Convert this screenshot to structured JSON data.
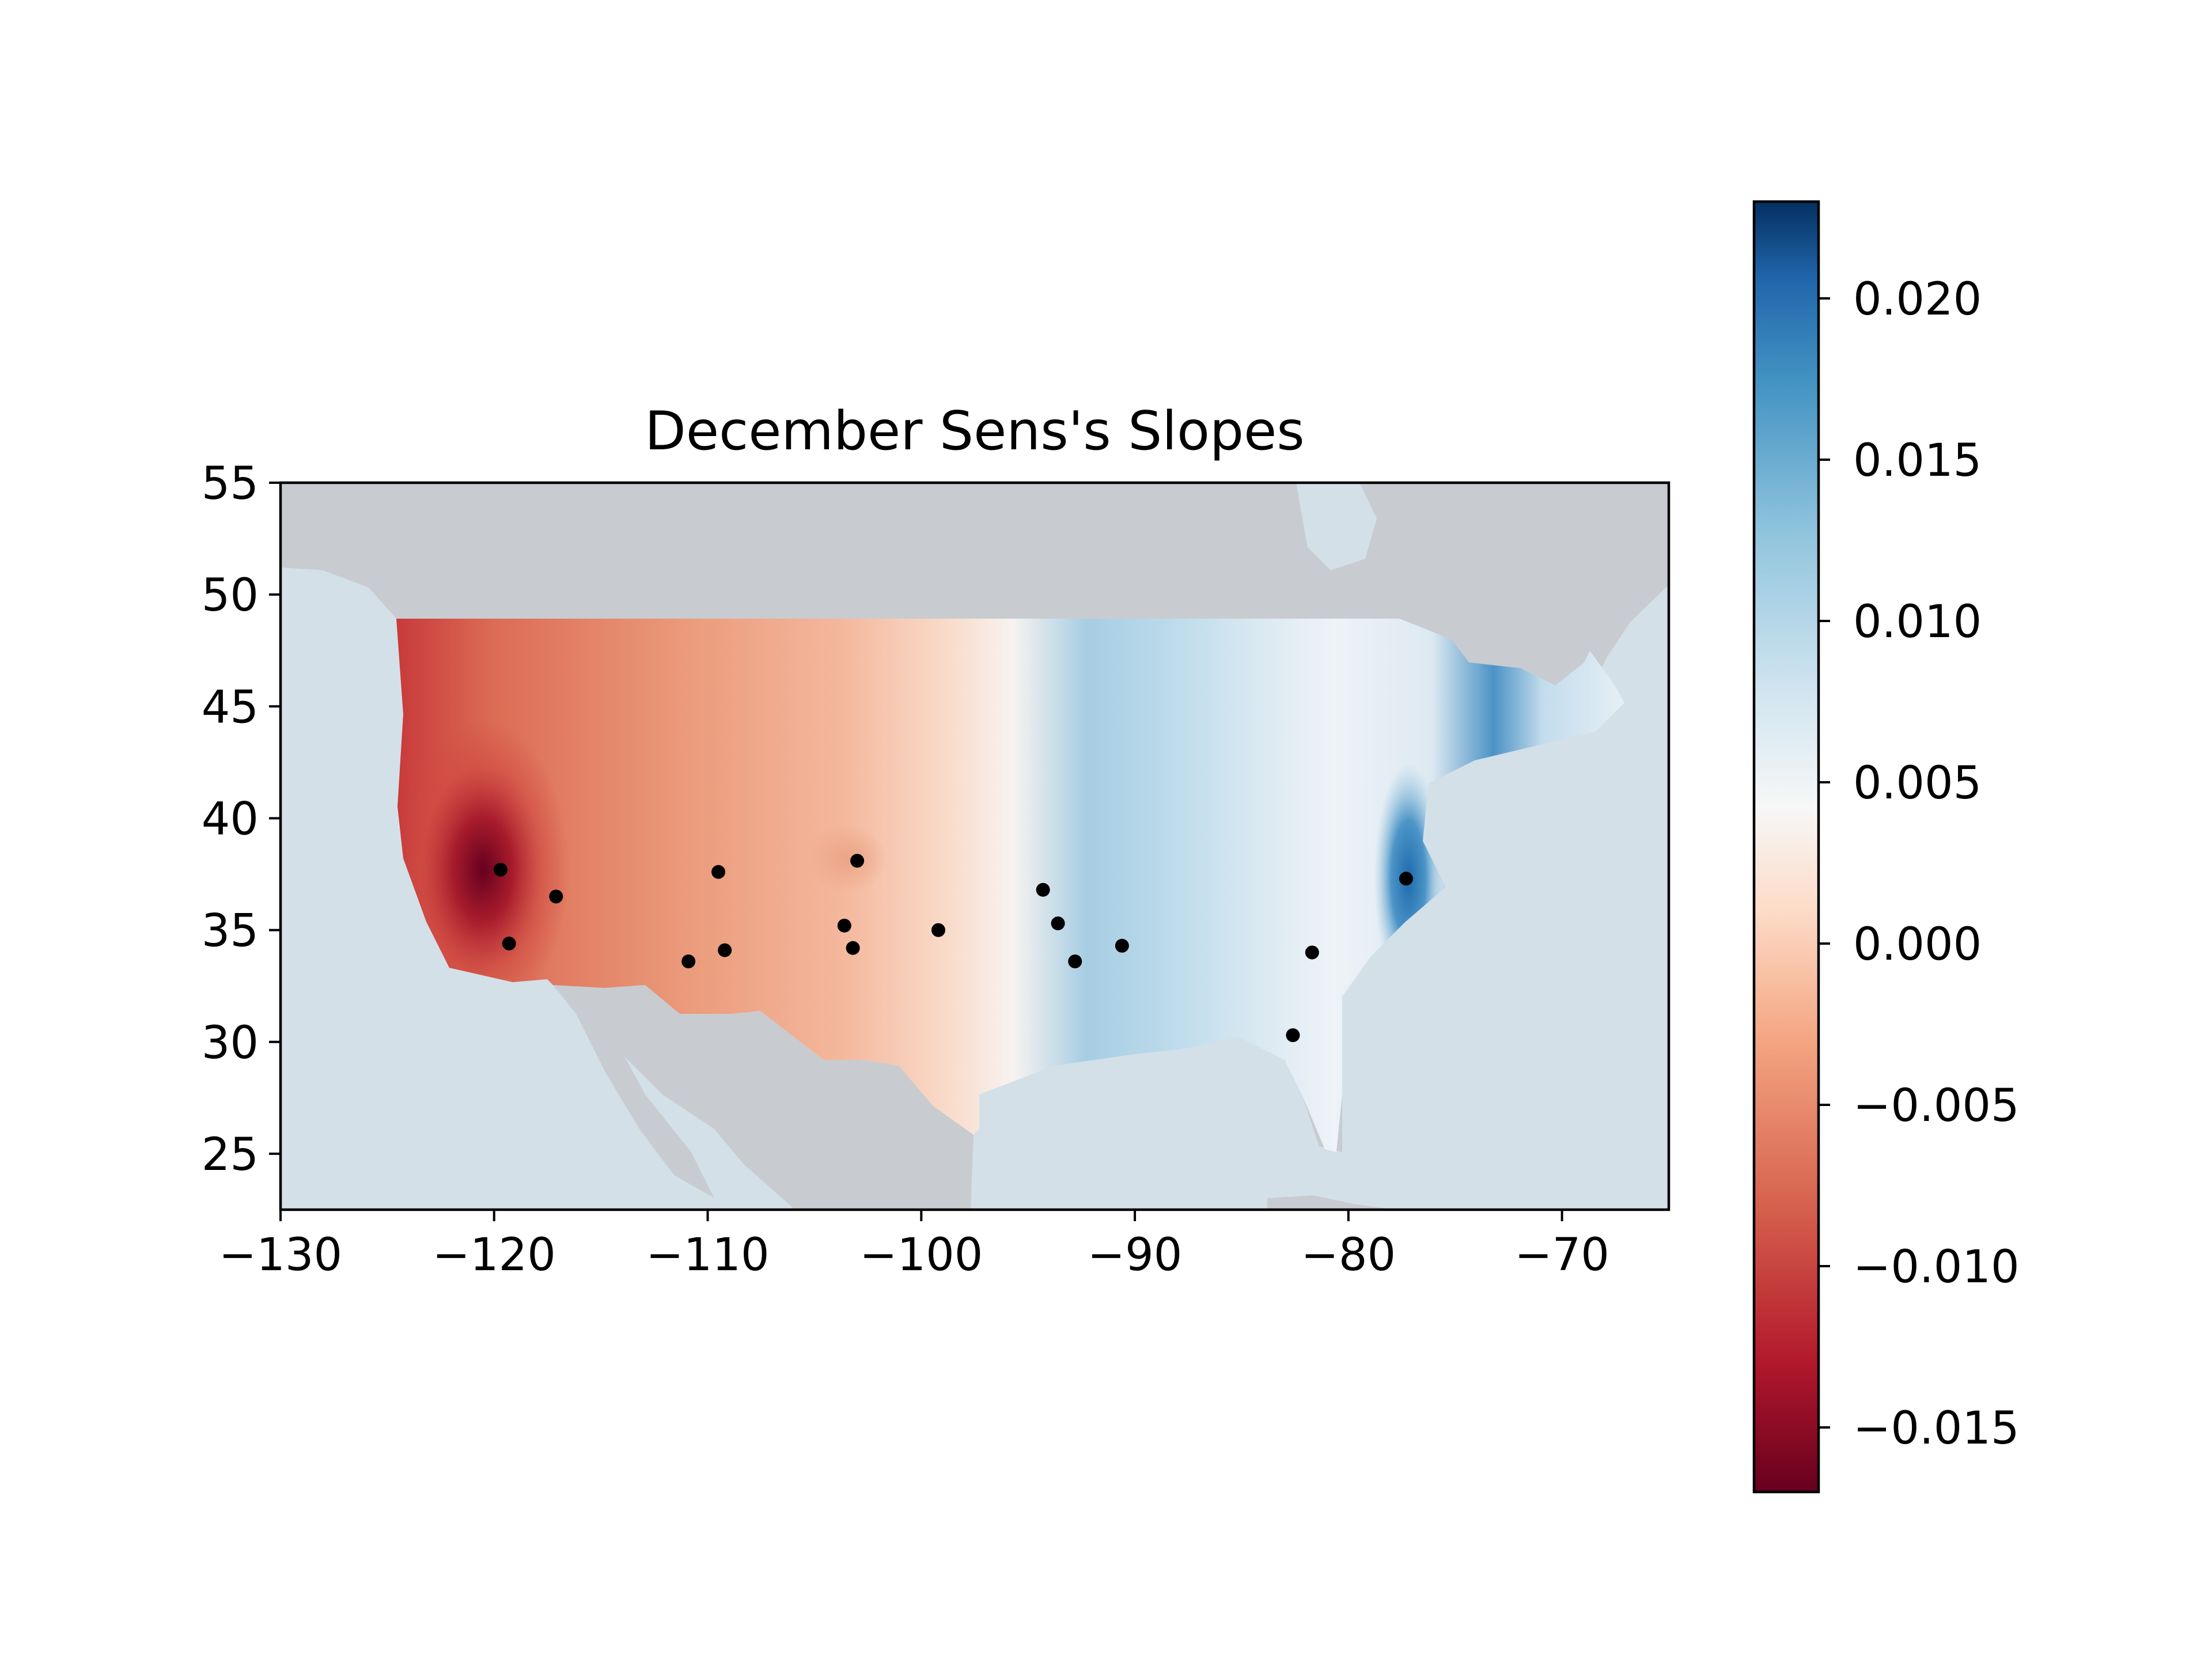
{
  "chart_data": [
    {
      "type": "scatter",
      "title": "December Sens's Slopes",
      "xlabel": "",
      "ylabel": "",
      "xlim": [
        -130,
        -65
      ],
      "ylim": [
        22.5,
        55
      ],
      "x_ticks": [
        -130,
        -120,
        -110,
        -100,
        -90,
        -80,
        -70
      ],
      "x_tick_labels": [
        "−130",
        "−120",
        "−110",
        "−100",
        "−90",
        "−80",
        "−70"
      ],
      "y_ticks": [
        25,
        30,
        35,
        40,
        45,
        50,
        55
      ],
      "y_tick_labels": [
        "25",
        "30",
        "35",
        "40",
        "45",
        "50",
        "55"
      ],
      "grid": false,
      "background": "map of North America (ocean #d4e0e8, land #c8ccd0)",
      "field": "filled contours of Sen's slope over contiguous USA, diverging red-white-blue",
      "points": {
        "x": [
          -119.7,
          -117.1,
          -119.3,
          -109.5,
          -110.9,
          -109.2,
          -103.0,
          -103.6,
          -103.2,
          -99.2,
          -94.3,
          -93.6,
          -92.8,
          -90.6,
          -81.7,
          -82.6,
          -77.3
        ],
        "y": [
          37.7,
          36.5,
          34.4,
          37.6,
          33.6,
          34.1,
          38.1,
          35.2,
          34.2,
          35.0,
          36.8,
          35.3,
          33.6,
          34.3,
          34.0,
          30.3,
          37.3
        ],
        "color": "#000000"
      }
    },
    {
      "type": "heatmap",
      "role": "colorbar",
      "colormap": "RdBu",
      "range": [
        -0.017,
        0.023
      ],
      "ticks": [
        -0.015,
        -0.01,
        -0.005,
        0.0,
        0.005,
        0.01,
        0.015,
        0.02
      ],
      "tick_labels": [
        "−0.015",
        "−0.010",
        "−0.005",
        "0.000",
        "0.005",
        "0.010",
        "0.015",
        "0.020"
      ]
    }
  ]
}
